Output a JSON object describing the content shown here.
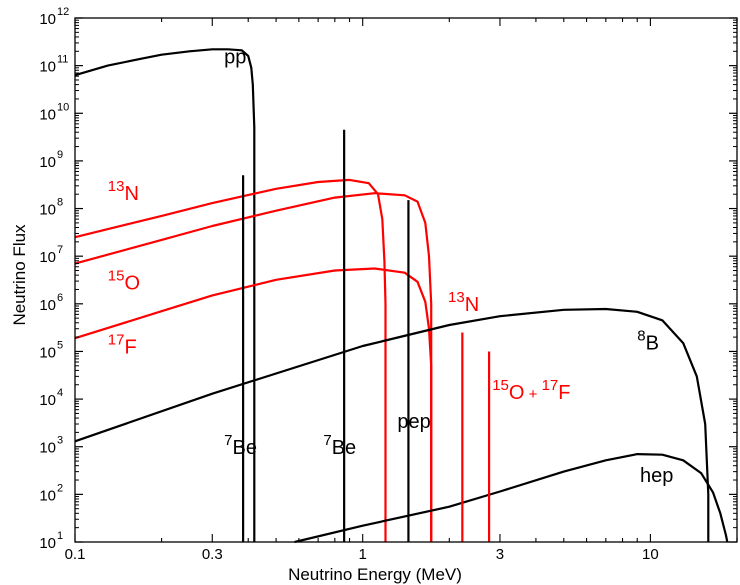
{
  "chart_data": {
    "type": "line",
    "xlabel": "Neutrino Energy (MeV)",
    "ylabel": "Neutrino Flux",
    "x_scale": "log",
    "y_scale": "log",
    "xlim": [
      0.1,
      20
    ],
    "ylim": [
      10,
      1000000000000
    ],
    "x_ticks": [
      {
        "value": 0.1,
        "label": "0.1"
      },
      {
        "value": 0.3,
        "label": "0.3"
      },
      {
        "value": 1,
        "label": "1"
      },
      {
        "value": 3,
        "label": "3"
      },
      {
        "value": 10,
        "label": "10"
      }
    ],
    "y_ticks": [
      {
        "value": 10,
        "base": "10",
        "exp": "1"
      },
      {
        "value": 100,
        "base": "10",
        "exp": "2"
      },
      {
        "value": 1000,
        "base": "10",
        "exp": "3"
      },
      {
        "value": 10000,
        "base": "10",
        "exp": "4"
      },
      {
        "value": 100000,
        "base": "10",
        "exp": "5"
      },
      {
        "value": 1000000,
        "base": "10",
        "exp": "6"
      },
      {
        "value": 10000000,
        "base": "10",
        "exp": "7"
      },
      {
        "value": 100000000,
        "base": "10",
        "exp": "8"
      },
      {
        "value": 1000000000,
        "base": "10",
        "exp": "9"
      },
      {
        "value": 10000000000,
        "base": "10",
        "exp": "10"
      },
      {
        "value": 100000000000,
        "base": "10",
        "exp": "11"
      },
      {
        "value": 1000000000000,
        "base": "10",
        "exp": "12"
      }
    ],
    "series": [
      {
        "color": "#000000",
        "x": [
          0.1,
          0.13,
          0.17,
          0.2,
          0.25,
          0.3,
          0.34,
          0.38,
          0.4,
          0.41,
          0.415,
          0.42,
          0.42
        ],
        "y": [
          63000000000.0,
          100000000000.0,
          140000000000.0,
          170000000000.0,
          200000000000.0,
          220000000000.0,
          220000000000.0,
          210000000000.0,
          160000000000.0,
          90000000000.0,
          40000000000.0,
          5000000000.0,
          10
        ]
      },
      {
        "color": "#ff0000",
        "x": [
          0.1,
          0.2,
          0.3,
          0.5,
          0.7,
          0.9,
          1.05,
          1.13,
          1.17,
          1.19,
          1.2,
          1.2
        ],
        "y": [
          25000000.0,
          70000000.0,
          130000000.0,
          260000000.0,
          360000000.0,
          400000000.0,
          340000000.0,
          200000000.0,
          60000000.0,
          8000000.0,
          1000000.0,
          10
        ]
      },
      {
        "color": "#ff0000",
        "x": [
          0.1,
          0.2,
          0.3,
          0.5,
          0.8,
          1.1,
          1.4,
          1.55,
          1.65,
          1.7,
          1.73,
          1.73
        ],
        "y": [
          7000000.0,
          22000000.0,
          43000000.0,
          90000000.0,
          170000000.0,
          210000000.0,
          190000000.0,
          140000000.0,
          50000000.0,
          10000000.0,
          1000000.0,
          10
        ]
      },
      {
        "color": "#ff0000",
        "x": [
          0.1,
          0.2,
          0.3,
          0.5,
          0.8,
          1.1,
          1.4,
          1.55,
          1.65,
          1.7,
          1.73,
          1.73
        ],
        "y": [
          190000.0,
          700000.0,
          1500000.0,
          3200000.0,
          5000000.0,
          5500000.0,
          4500000.0,
          2900000.0,
          1100000.0,
          300000.0,
          50000.0,
          10
        ]
      },
      {
        "color": "#000000",
        "x": [
          0.1,
          0.3,
          1,
          2,
          3,
          5,
          7,
          9,
          11,
          13,
          14.5,
          15.5,
          15.9,
          15.9
        ],
        "y": [
          1300.0,
          13000.0,
          130000.0,
          360000.0,
          550000.0,
          750000.0,
          780000.0,
          680000.0,
          450000.0,
          150000.0,
          30000.0,
          3000.0,
          100.0,
          10
        ]
      },
      {
        "color": "#000000",
        "x": [
          0.58,
          1,
          2,
          3,
          5,
          7,
          9,
          11,
          13,
          15,
          16.5,
          17.5,
          18.3,
          18.5
        ],
        "y": [
          10,
          22,
          55,
          115,
          300,
          520,
          700,
          680,
          520,
          280,
          110,
          40,
          14,
          10
        ]
      }
    ],
    "lines": [
      {
        "x": 0.384,
        "top": 500000000.0,
        "color": "#000000"
      },
      {
        "x": 0.862,
        "top": 4500000000.0,
        "color": "#000000"
      },
      {
        "x": 1.442,
        "top": 150000000.0,
        "color": "#000000"
      },
      {
        "x": 2.22,
        "top": 250000.0,
        "color": "#ff0000"
      },
      {
        "x": 2.75,
        "top": 100000.0,
        "color": "#ff0000"
      }
    ],
    "labels": [
      {
        "text": "pp",
        "x": 0.33,
        "y": 110000000000.0,
        "color": "#000000",
        "sup": ""
      },
      {
        "text": "N",
        "x": 0.13,
        "y": 150000000.0,
        "color": "#ff0000",
        "sup": "13"
      },
      {
        "text": "O",
        "x": 0.13,
        "y": 2000000.0,
        "color": "#ff0000",
        "sup": "15"
      },
      {
        "text": "F",
        "x": 0.13,
        "y": 90000.0,
        "color": "#ff0000",
        "sup": "17"
      },
      {
        "text": "Be",
        "x": 0.33,
        "y": 700.0,
        "color": "#000000",
        "sup": "7"
      },
      {
        "text": "Be",
        "x": 0.73,
        "y": 700.0,
        "color": "#000000",
        "sup": "7"
      },
      {
        "text": "pep",
        "x": 1.32,
        "y": 2500.0,
        "color": "#000000",
        "sup": ""
      },
      {
        "text": "N",
        "x": 1.98,
        "y": 700000.0,
        "color": "#ff0000",
        "sup": "13"
      },
      {
        "text": "B",
        "x": 9.0,
        "y": 110000.0,
        "color": "#000000",
        "sup": "8"
      },
      {
        "text": "hep",
        "x": 9.2,
        "y": 180.0,
        "color": "#000000",
        "sup": ""
      }
    ],
    "combo_label": {
      "color": "#ff0000",
      "sup1": "15",
      "el1": "O",
      "plus": "+",
      "sup2": "17",
      "el2": "F",
      "x": 2.82,
      "y": 10000.0
    }
  }
}
